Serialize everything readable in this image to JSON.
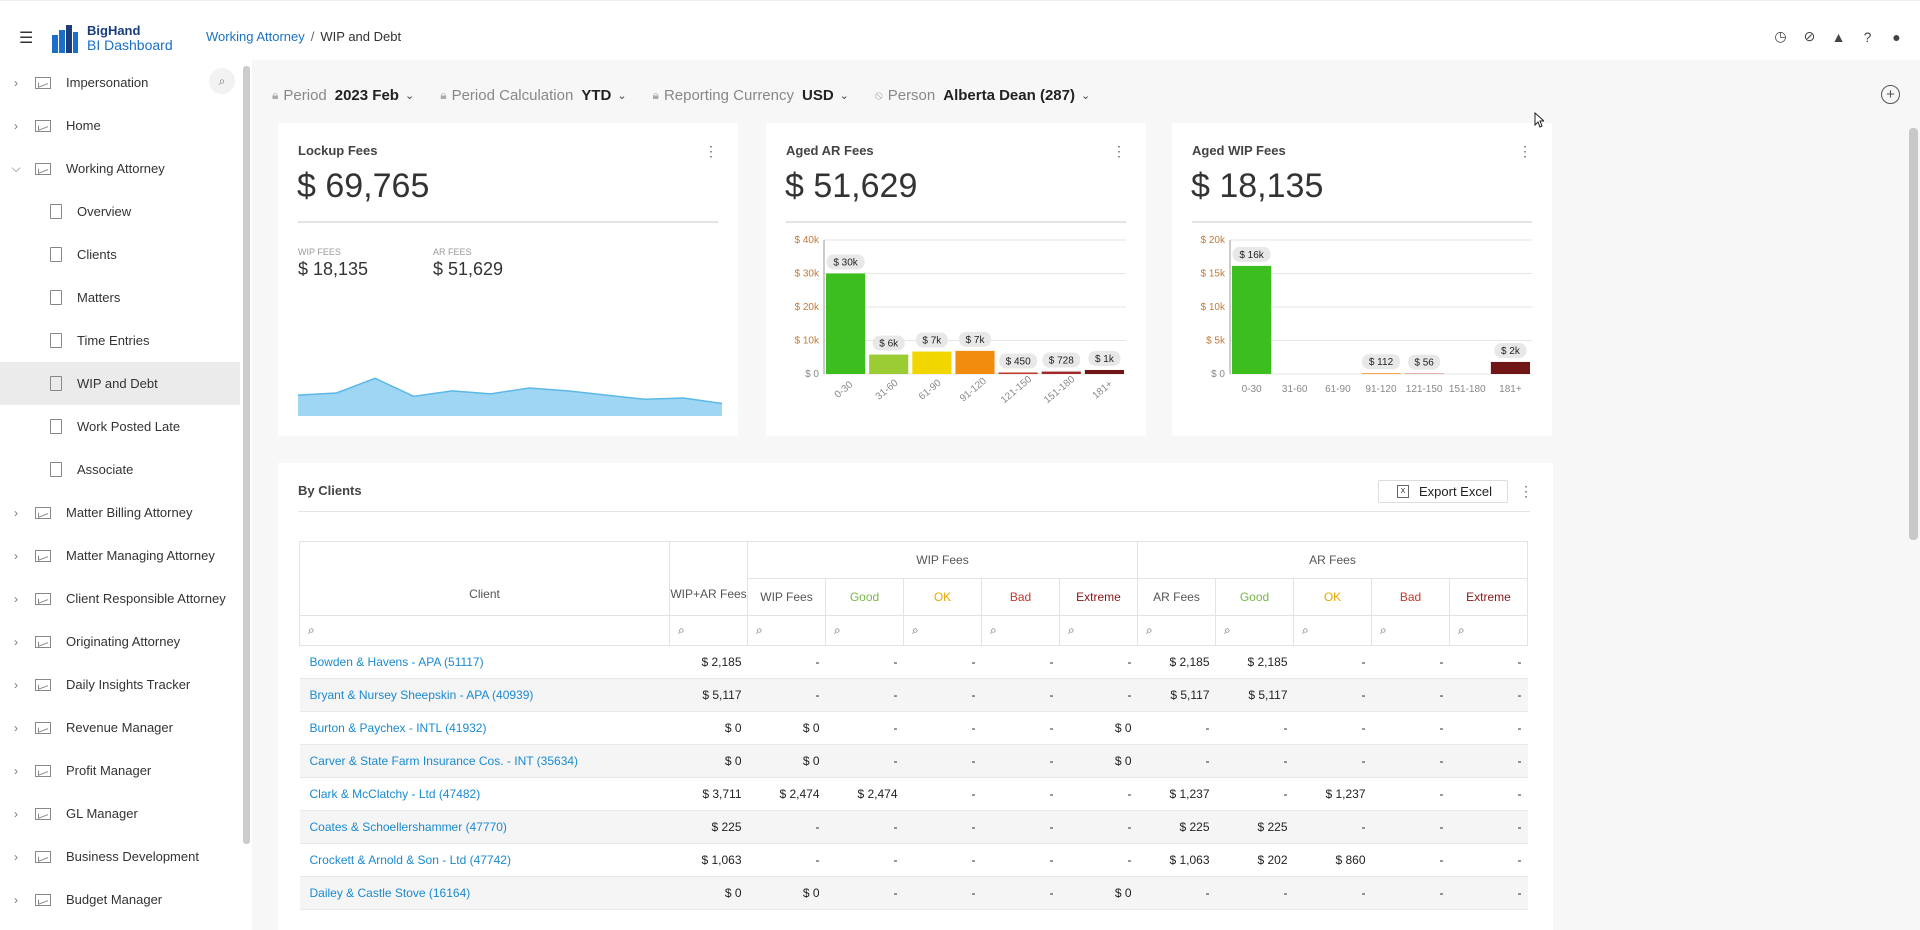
{
  "app": {
    "logo_line1": "BigHand",
    "logo_line2": "BI Dashboard"
  },
  "breadcrumb": {
    "parent": "Working Attorney",
    "separator": "/",
    "current": "WIP and Debt"
  },
  "topbar_icons": [
    "history-icon",
    "visibility-off-icon",
    "bell-icon",
    "help-icon",
    "user-icon"
  ],
  "sidebar": {
    "items": [
      {
        "label": "Impersonation",
        "expanded": false
      },
      {
        "label": "Home",
        "expanded": false
      },
      {
        "label": "Working Attorney",
        "expanded": true
      },
      {
        "label": "Overview",
        "child": true
      },
      {
        "label": "Clients",
        "child": true
      },
      {
        "label": "Matters",
        "child": true
      },
      {
        "label": "Time Entries",
        "child": true
      },
      {
        "label": "WIP and Debt",
        "child": true,
        "active": true
      },
      {
        "label": "Work Posted Late",
        "child": true
      },
      {
        "label": "Associate",
        "child": true
      },
      {
        "label": "Matter Billing Attorney",
        "expanded": false
      },
      {
        "label": "Matter Managing Attorney",
        "expanded": false
      },
      {
        "label": "Client Responsible Attorney",
        "expanded": false
      },
      {
        "label": "Originating Attorney",
        "expanded": false
      },
      {
        "label": "Daily Insights Tracker",
        "expanded": false
      },
      {
        "label": "Revenue Manager",
        "expanded": false
      },
      {
        "label": "Profit Manager",
        "expanded": false
      },
      {
        "label": "GL Manager",
        "expanded": false
      },
      {
        "label": "Business Development",
        "expanded": false
      },
      {
        "label": "Budget Manager",
        "expanded": false
      }
    ]
  },
  "filters": {
    "period": {
      "label": "Period",
      "value": "2023 Feb"
    },
    "calc": {
      "label": "Period Calculation",
      "value": "YTD"
    },
    "currency": {
      "label": "Reporting Currency",
      "value": "USD"
    },
    "person": {
      "label": "Person",
      "value": "Alberta Dean (287)"
    }
  },
  "lockup": {
    "title": "Lockup Fees",
    "value": "$ 69,765",
    "wip_label": "WIP FEES",
    "wip_value": "$ 18,135",
    "ar_label": "AR FEES",
    "ar_value": "$ 51,629",
    "sparkline": [
      0.45,
      0.5,
      0.85,
      0.42,
      0.55,
      0.48,
      0.62,
      0.55,
      0.45,
      0.35,
      0.38,
      0.25
    ]
  },
  "aged_ar": {
    "title": "Aged AR Fees",
    "value": "$ 51,629"
  },
  "aged_wip": {
    "title": "Aged WIP Fees",
    "value": "$ 18,135"
  },
  "chart_data": [
    {
      "type": "bar",
      "title": "Aged AR Fees",
      "categories": [
        "0-30",
        "31-60",
        "61-90",
        "91-120",
        "121-150",
        "151-180",
        "181+"
      ],
      "values": [
        30000,
        5800,
        6700,
        6900,
        450,
        728,
        1200
      ],
      "labels": [
        "$ 30k",
        "$ 6k",
        "$ 7k",
        "$ 7k",
        "$ 450",
        "$ 728",
        "$ 1k"
      ],
      "yticks": [
        "$ 0",
        "$ 10k",
        "$ 20k",
        "$ 30k",
        "$ 40k"
      ],
      "ylim": [
        0,
        40000
      ],
      "colors": [
        "#3cbf1e",
        "#9ccc34",
        "#f2d600",
        "#f28c0f",
        "#c0392b",
        "#a32a2a",
        "#701616"
      ]
    },
    {
      "type": "bar",
      "title": "Aged WIP Fees",
      "categories": [
        "0-30",
        "31-60",
        "61-90",
        "91-120",
        "121-150",
        "151-180",
        "181+"
      ],
      "values": [
        16135,
        0,
        0,
        112,
        56,
        0,
        1800
      ],
      "labels": [
        "$ 16k",
        "",
        "",
        "$ 112",
        "$ 56",
        "",
        "$ 2k"
      ],
      "yticks": [
        "$ 0",
        "$ 5k",
        "$ 10k",
        "$ 15k",
        "$ 20k"
      ],
      "ylim": [
        0,
        20000
      ],
      "colors": [
        "#3cbf1e",
        "#9ccc34",
        "#f2d600",
        "#f28c0f",
        "#c0392b",
        "#a32a2a",
        "#701616"
      ]
    }
  ],
  "clients": {
    "title": "By Clients",
    "export_label": "Export Excel",
    "group_wip": "WIP Fees",
    "group_ar": "AR Fees",
    "columns": [
      "Client",
      "WIP+AR Fees",
      "WIP Fees",
      "Good",
      "OK",
      "Bad",
      "Extreme",
      "AR Fees",
      "Good",
      "OK",
      "Bad",
      "Extreme"
    ],
    "rows": [
      [
        "Bowden & Havens - APA (51117)",
        "$ 2,185",
        "-",
        "-",
        "-",
        "-",
        "-",
        "$ 2,185",
        "$ 2,185",
        "-",
        "-",
        "-"
      ],
      [
        "Bryant & Nursey Sheepskin - APA (40939)",
        "$ 5,117",
        "-",
        "-",
        "-",
        "-",
        "-",
        "$ 5,117",
        "$ 5,117",
        "-",
        "-",
        "-"
      ],
      [
        "Burton & Paychex - INTL (41932)",
        "$ 0",
        "$ 0",
        "-",
        "-",
        "-",
        "$ 0",
        "-",
        "-",
        "-",
        "-",
        "-"
      ],
      [
        "Carver & State Farm Insurance Cos. - INT (35634)",
        "$ 0",
        "$ 0",
        "-",
        "-",
        "-",
        "$ 0",
        "-",
        "-",
        "-",
        "-",
        "-"
      ],
      [
        "Clark & McClatchy - Ltd (47482)",
        "$ 3,711",
        "$ 2,474",
        "$ 2,474",
        "-",
        "-",
        "-",
        "$ 1,237",
        "-",
        "$ 1,237",
        "-",
        "-"
      ],
      [
        "Coates & Schoellershammer (47770)",
        "$ 225",
        "-",
        "-",
        "-",
        "-",
        "-",
        "$ 225",
        "$ 225",
        "-",
        "-",
        "-"
      ],
      [
        "Crockett & Arnold & Son - Ltd (47742)",
        "$ 1,063",
        "-",
        "-",
        "-",
        "-",
        "-",
        "$ 1,063",
        "$ 202",
        "$ 860",
        "-",
        "-"
      ],
      [
        "Dailey & Castle Stove (16164)",
        "$ 0",
        "$ 0",
        "-",
        "-",
        "-",
        "$ 0",
        "-",
        "-",
        "-",
        "-",
        "-"
      ]
    ]
  }
}
